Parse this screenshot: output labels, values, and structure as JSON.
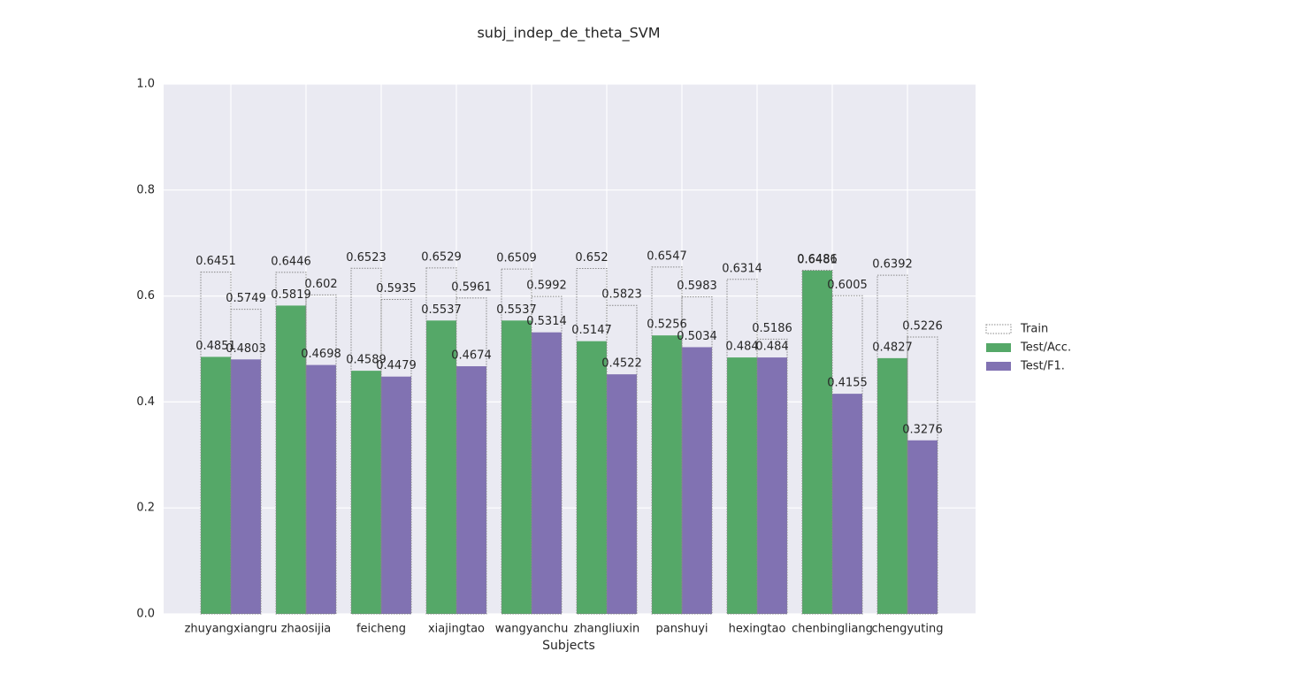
{
  "chart_data": {
    "type": "bar",
    "title": "subj_indep_de_theta_SVM",
    "x_label": "Subjects",
    "categories": [
      "zhuyangxiangru",
      "zhaosijia",
      "feicheng",
      "xiajingtao",
      "wangyanchu",
      "zhangliuxin",
      "panshuyi",
      "hexingtao",
      "chenbingliang",
      "chengyuting"
    ],
    "series": [
      {
        "name": "Train",
        "color": "#888888",
        "values": [
          0.6451,
          0.6446,
          0.6523,
          0.6529,
          0.6509,
          0.652,
          0.6547,
          0.6314,
          0.6486,
          0.6392
        ],
        "f1_values": [
          0.5749,
          0.602,
          0.5935,
          0.5961,
          0.5992,
          0.5823,
          0.5983,
          0.5186,
          0.6005,
          0.5226
        ]
      },
      {
        "name": "Test/Acc.",
        "color": "#55a868",
        "values": [
          0.4851,
          0.5819,
          0.4589,
          0.5537,
          0.5537,
          0.5147,
          0.5256,
          0.484,
          0.6481,
          0.4827
        ]
      },
      {
        "name": "Test/F1.",
        "color": "#8172b2",
        "values": [
          0.4803,
          0.4698,
          0.4479,
          0.4674,
          0.5314,
          0.4522,
          0.5034,
          0.484,
          0.4155,
          0.3276
        ]
      }
    ],
    "ylim": [
      0,
      1
    ],
    "yticks": [
      {
        "value": 0,
        "label": "0.0"
      },
      0.2,
      0.4,
      0.6,
      0.8,
      {
        "value": 1,
        "label": "1.0"
      }
    ],
    "grid": true,
    "legend": "right"
  }
}
